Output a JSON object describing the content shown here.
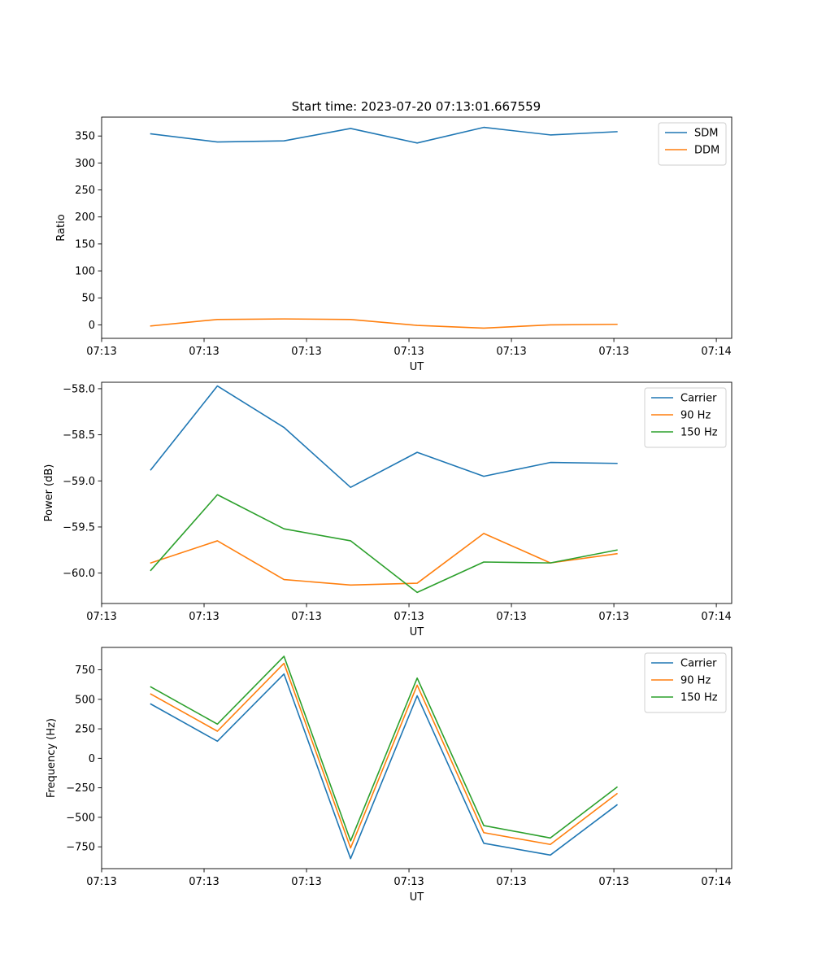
{
  "title": "Start time: 2023-07-20 07:13:01.667559",
  "colors": {
    "blue": "#1f77b4",
    "orange": "#ff7f0e",
    "green": "#2ca02c"
  },
  "chart_data": [
    {
      "type": "line",
      "title": "Start time: 2023-07-20 07:13:01.667559",
      "xlabel": "UT",
      "ylabel": "Ratio",
      "xlim": [
        -0.48,
        5.67
      ],
      "ylim": [
        -25,
        385
      ],
      "x": [
        0.0,
        0.65,
        1.3,
        1.95,
        2.6,
        3.25,
        3.9,
        4.55
      ],
      "xticks": [
        -0.48,
        0.52,
        1.52,
        2.52,
        3.52,
        4.52,
        5.52
      ],
      "xtick_labels": [
        "07:13",
        "07:13",
        "07:13",
        "07:13",
        "07:13",
        "07:13",
        "07:14"
      ],
      "yticks": [
        0,
        50,
        100,
        150,
        200,
        250,
        300,
        350
      ],
      "ytick_labels": [
        "0",
        "50",
        "100",
        "150",
        "200",
        "250",
        "300",
        "350"
      ],
      "legend_loc": "top-right",
      "series": [
        {
          "name": "SDM",
          "color": "#1f77b4",
          "values": [
            354,
            339,
            341,
            364,
            337,
            366,
            352,
            358
          ]
        },
        {
          "name": "DDM",
          "color": "#ff7f0e",
          "values": [
            -2,
            10,
            11,
            10,
            -1,
            -6,
            0,
            1
          ]
        }
      ]
    },
    {
      "type": "line",
      "title": "",
      "xlabel": "UT",
      "ylabel": "Power (dB)",
      "xlim": [
        -0.48,
        5.67
      ],
      "ylim": [
        -60.33,
        -57.93
      ],
      "x": [
        0.0,
        0.65,
        1.3,
        1.95,
        2.6,
        3.25,
        3.9,
        4.55
      ],
      "xticks": [
        -0.48,
        0.52,
        1.52,
        2.52,
        3.52,
        4.52,
        5.52
      ],
      "xtick_labels": [
        "07:13",
        "07:13",
        "07:13",
        "07:13",
        "07:13",
        "07:13",
        "07:14"
      ],
      "yticks": [
        -60.0,
        -59.5,
        -59.0,
        -58.5,
        -58.0
      ],
      "ytick_labels": [
        "−60.0",
        "−59.5",
        "−59.0",
        "−58.5",
        "−58.0"
      ],
      "legend_loc": "top-right",
      "series": [
        {
          "name": "Carrier",
          "color": "#1f77b4",
          "values": [
            -58.88,
            -57.97,
            -58.42,
            -59.07,
            -58.69,
            -58.95,
            -58.8,
            -58.81
          ]
        },
        {
          "name": "90 Hz",
          "color": "#ff7f0e",
          "values": [
            -59.89,
            -59.65,
            -60.07,
            -60.13,
            -60.11,
            -59.57,
            -59.89,
            -59.79
          ]
        },
        {
          "name": "150 Hz",
          "color": "#2ca02c",
          "values": [
            -59.97,
            -59.15,
            -59.52,
            -59.65,
            -60.21,
            -59.88,
            -59.89,
            -59.75
          ]
        }
      ]
    },
    {
      "type": "line",
      "title": "",
      "xlabel": "UT",
      "ylabel": "Frequency (Hz)",
      "xlim": [
        -0.48,
        5.67
      ],
      "ylim": [
        -935,
        940
      ],
      "x": [
        0.0,
        0.65,
        1.3,
        1.95,
        2.6,
        3.25,
        3.9,
        4.55
      ],
      "xticks": [
        -0.48,
        0.52,
        1.52,
        2.52,
        3.52,
        4.52,
        5.52
      ],
      "xtick_labels": [
        "07:13",
        "07:13",
        "07:13",
        "07:13",
        "07:13",
        "07:13",
        "07:14"
      ],
      "yticks": [
        -750,
        -500,
        -250,
        0,
        250,
        500,
        750
      ],
      "ytick_labels": [
        "−750",
        "−500",
        "−250",
        "0",
        "250",
        "500",
        "750"
      ],
      "legend_loc": "top-right",
      "series": [
        {
          "name": "Carrier",
          "color": "#1f77b4",
          "values": [
            460,
            145,
            715,
            -850,
            530,
            -720,
            -820,
            -395
          ]
        },
        {
          "name": "90 Hz",
          "color": "#ff7f0e",
          "values": [
            545,
            230,
            805,
            -760,
            620,
            -630,
            -730,
            -300
          ]
        },
        {
          "name": "150 Hz",
          "color": "#2ca02c",
          "values": [
            605,
            290,
            865,
            -700,
            680,
            -570,
            -675,
            -245
          ]
        }
      ]
    }
  ]
}
